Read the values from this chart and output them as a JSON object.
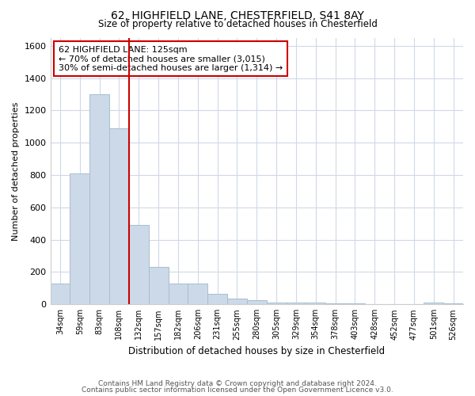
{
  "title1": "62, HIGHFIELD LANE, CHESTERFIELD, S41 8AY",
  "title2": "Size of property relative to detached houses in Chesterfield",
  "xlabel": "Distribution of detached houses by size in Chesterfield",
  "ylabel": "Number of detached properties",
  "categories": [
    "34sqm",
    "59sqm",
    "83sqm",
    "108sqm",
    "132sqm",
    "157sqm",
    "182sqm",
    "206sqm",
    "231sqm",
    "255sqm",
    "280sqm",
    "305sqm",
    "329sqm",
    "354sqm",
    "378sqm",
    "403sqm",
    "428sqm",
    "452sqm",
    "477sqm",
    "501sqm",
    "526sqm"
  ],
  "values": [
    130,
    810,
    1300,
    1090,
    490,
    230,
    130,
    130,
    65,
    35,
    25,
    10,
    10,
    10,
    5,
    5,
    0,
    0,
    0,
    10,
    5
  ],
  "bar_color": "#ccd9e8",
  "bar_edge_color": "#a8bece",
  "vline_color": "#cc0000",
  "annotation_text": "62 HIGHFIELD LANE: 125sqm\n← 70% of detached houses are smaller (3,015)\n30% of semi-detached houses are larger (1,314) →",
  "annotation_box_color": "#ffffff",
  "annotation_box_edge": "#cc0000",
  "ylim": [
    0,
    1650
  ],
  "yticks": [
    0,
    200,
    400,
    600,
    800,
    1000,
    1200,
    1400,
    1600
  ],
  "footer1": "Contains HM Land Registry data © Crown copyright and database right 2024.",
  "footer2": "Contains public sector information licensed under the Open Government Licence v3.0.",
  "background_color": "#ffffff",
  "grid_color": "#d0d8e8"
}
